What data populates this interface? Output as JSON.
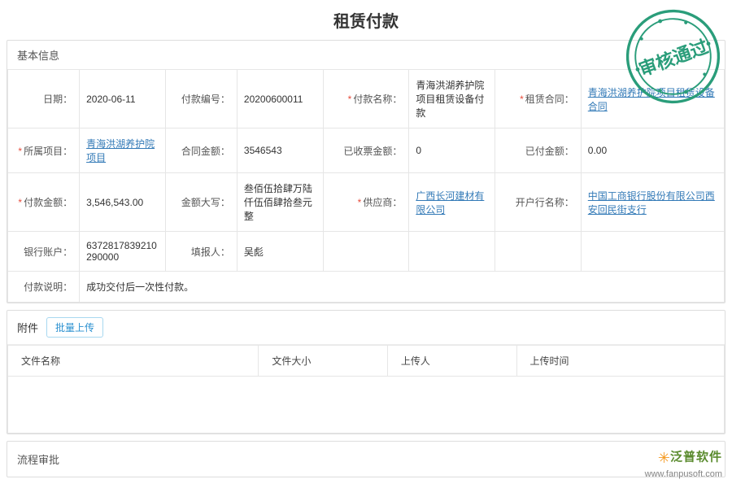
{
  "page_title": "租赁付款",
  "basic_info": {
    "section_title": "基本信息",
    "rows": [
      [
        {
          "label": "日期：",
          "required": false,
          "value": "2020-06-11",
          "link": false
        },
        {
          "label": "付款编号：",
          "required": false,
          "value": "20200600011",
          "link": false,
          "hidden_overflow": "20200600"
        },
        {
          "label": "付款名称：",
          "required": true,
          "value": "青海洪湖养护院项目租赁设备付款",
          "link": false
        },
        {
          "label": "租赁合同：",
          "required": true,
          "value": "青海洪湖养护院项目租赁设备合同",
          "link": true
        }
      ],
      [
        {
          "label": "所属项目：",
          "required": true,
          "value": "青海洪湖养护院项目",
          "link": true
        },
        {
          "label": "合同金额：",
          "required": false,
          "value": "3546543",
          "link": false
        },
        {
          "label": "已收票金额：",
          "required": false,
          "value": "0",
          "link": false
        },
        {
          "label": "已付金额：",
          "required": false,
          "value": "0.00",
          "link": false
        }
      ],
      [
        {
          "label": "付款金额：",
          "required": true,
          "value": "3,546,543.00",
          "link": false
        },
        {
          "label": "金额大写：",
          "required": false,
          "value": "叁佰伍拾肆万陆仟伍佰肆拾叁元整",
          "link": false
        },
        {
          "label": "供应商：",
          "required": true,
          "value": "广西长河建材有限公司",
          "link": true
        },
        {
          "label": "开户行名称：",
          "required": false,
          "value": "中国工商银行股份有限公司西安回民街支行",
          "link": true
        }
      ],
      [
        {
          "label": "银行账户：",
          "required": false,
          "value": "6372817839210290000",
          "link": false
        },
        {
          "label": "填报人：",
          "required": false,
          "value": "吴彪",
          "link": false
        },
        {
          "label": "",
          "required": false,
          "value": "",
          "link": false
        },
        {
          "label": "",
          "required": false,
          "value": "",
          "link": false
        }
      ]
    ],
    "desc_label": "付款说明：",
    "desc_value": "成功交付后一次性付款。"
  },
  "attachments": {
    "section_title": "附件",
    "upload_btn": "批量上传",
    "columns": [
      "文件名称",
      "文件大小",
      "上传人",
      "上传时间"
    ]
  },
  "approval": {
    "section_title": "流程审批"
  },
  "stamp": {
    "text": "审核通过",
    "color": "#2a9d7a"
  },
  "logo": {
    "brand": "泛普软件",
    "url": "www.fanpusoft.com"
  }
}
